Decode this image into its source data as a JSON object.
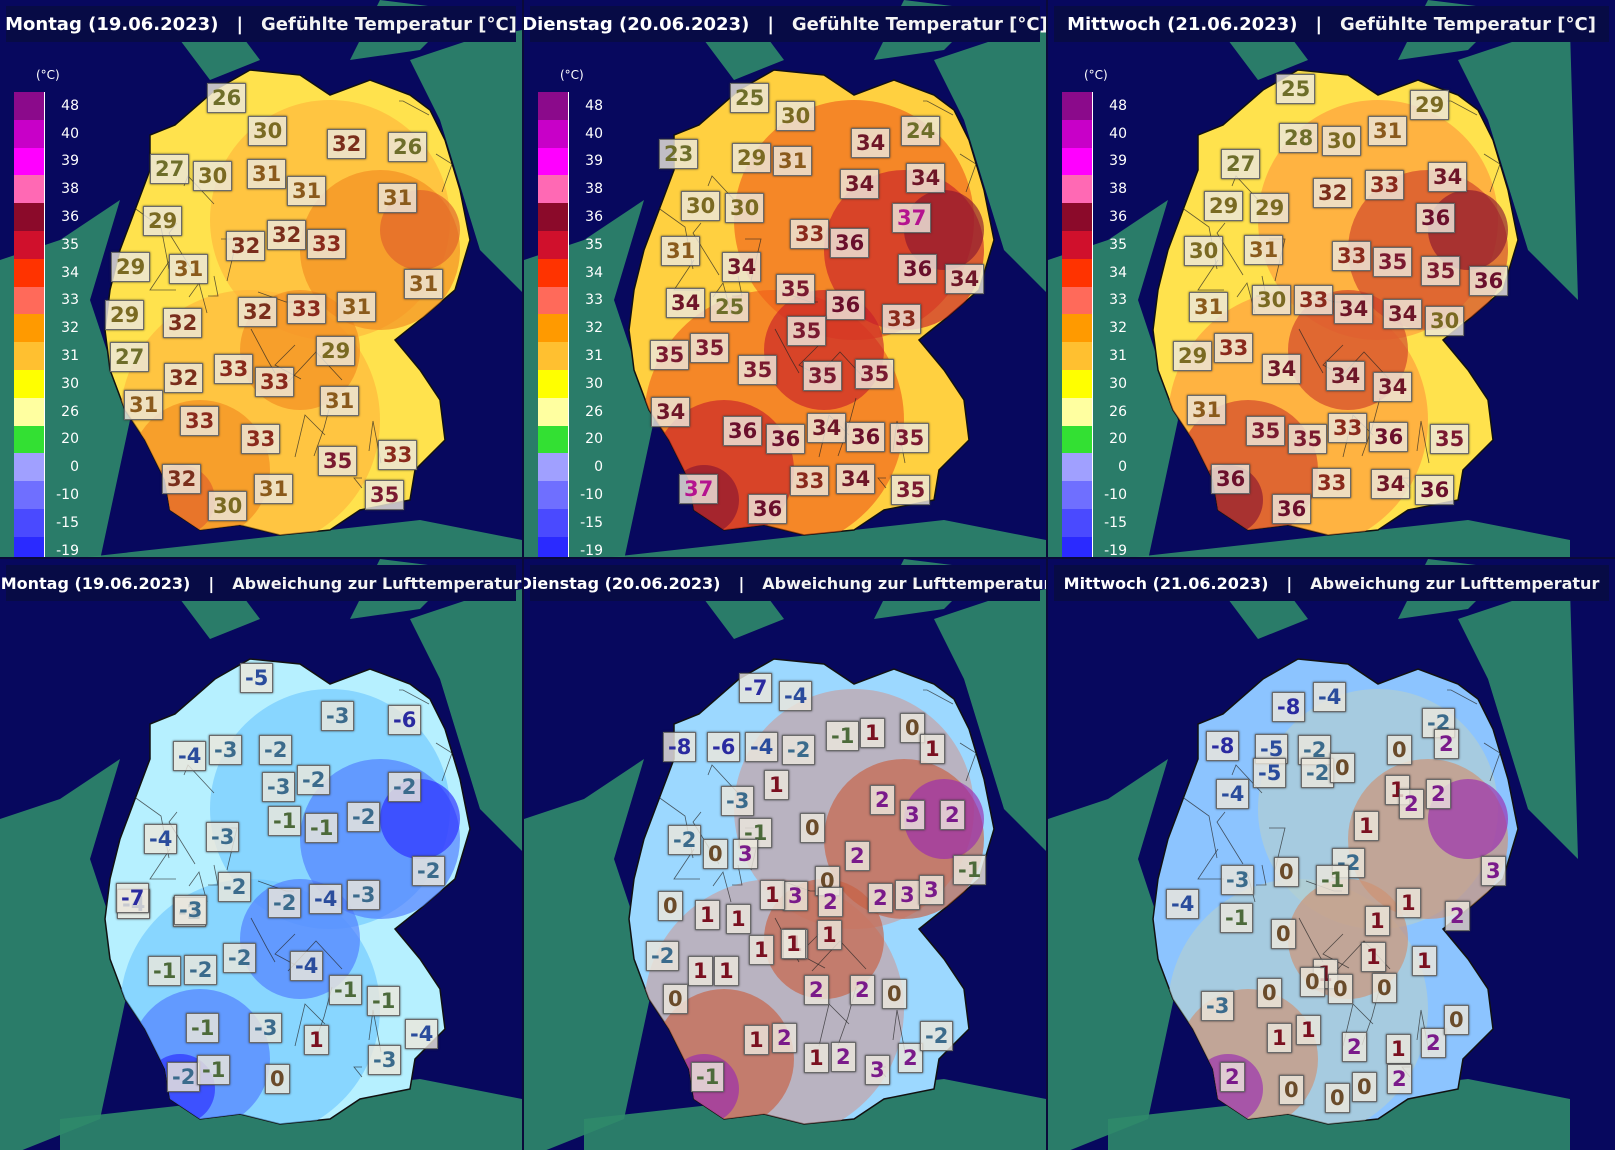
{
  "legend": {
    "unit": "(°C)",
    "items": [
      {
        "label": "48",
        "color": "#8b0a8b"
      },
      {
        "label": "40",
        "color": "#c800c8"
      },
      {
        "label": "39",
        "color": "#ff00ff"
      },
      {
        "label": "38",
        "color": "#ff69b4"
      },
      {
        "label": "36",
        "color": "#8b0a2a"
      },
      {
        "label": "35",
        "color": "#d0102c"
      },
      {
        "label": "34",
        "color": "#ff3300"
      },
      {
        "label": "33",
        "color": "#ff6a5a"
      },
      {
        "label": "32",
        "color": "#ff9a00"
      },
      {
        "label": "31",
        "color": "#ffc030"
      },
      {
        "label": "30",
        "color": "#ffff00"
      },
      {
        "label": "26",
        "color": "#ffffa0"
      },
      {
        "label": "20",
        "color": "#33e033"
      },
      {
        "label": "0",
        "color": "#a0a0ff"
      },
      {
        "label": "-10",
        "color": "#6f6fff"
      },
      {
        "label": "-15",
        "color": "#4a4aff"
      },
      {
        "label": "-19",
        "color": "#2a2aff"
      }
    ]
  },
  "panels": [
    {
      "day": "Montag (19.06.2023)",
      "sep": "|",
      "title": "Gefühlte Temperatur [°C]",
      "labels": [
        "26",
        "30",
        "32",
        "26",
        "27",
        "30",
        "31",
        "31",
        "31",
        "29",
        "32",
        "32",
        "33",
        "29",
        "31",
        "31",
        "29",
        "32",
        "32",
        "33",
        "31",
        "27",
        "29",
        "32",
        "33",
        "33",
        "31",
        "31",
        "33",
        "33",
        "33",
        "35",
        "32",
        "31",
        "35",
        "30"
      ]
    },
    {
      "day": "Dienstag (20.06.2023)",
      "sep": "|",
      "title": "Gefühlte Temperatur [°C]",
      "labels": [
        "25",
        "30",
        "24",
        "23",
        "29",
        "31",
        "34",
        "34",
        "34",
        "30",
        "30",
        "37",
        "31",
        "33",
        "36",
        "36",
        "34",
        "25",
        "35",
        "36",
        "34",
        "34",
        "35",
        "35",
        "33",
        "35",
        "35",
        "35",
        "35",
        "34",
        "36",
        "36",
        "34",
        "36",
        "35",
        "37",
        "33",
        "34",
        "35",
        "36"
      ]
    },
    {
      "day": "Mittwoch (21.06.2023)",
      "sep": "|",
      "title": "Gefühlte Temperatur [°C]",
      "labels": [
        "25",
        "29",
        "28",
        "30",
        "31",
        "27",
        "29",
        "29",
        "32",
        "33",
        "34",
        "36",
        "30",
        "31",
        "33",
        "35",
        "35",
        "36",
        "31",
        "30",
        "33",
        "34",
        "34",
        "30",
        "29",
        "33",
        "34",
        "34",
        "34",
        "31",
        "35",
        "35",
        "33",
        "36",
        "35",
        "36",
        "33",
        "34",
        "36",
        "36"
      ]
    },
    {
      "day": "Montag (19.06.2023)",
      "sep": "|",
      "title": "Abweichung zur Lufttemperatur",
      "labels": [
        "-5",
        "-3",
        "-6",
        "-4",
        "-3",
        "-2",
        "-2",
        "-3",
        "-2",
        "-4",
        "-3",
        "-1",
        "-1",
        "-2",
        "-2",
        "-4",
        "-2",
        "-2",
        "-2",
        "-4",
        "-3",
        "-7",
        "-3",
        "-1",
        "-2",
        "-2",
        "-4",
        "-1",
        "-1",
        "-1",
        "-3",
        "1",
        "-4",
        "-2",
        "-1",
        "0",
        "-3"
      ]
    },
    {
      "day": "Dienstag (20.06.2023)",
      "sep": "|",
      "title": "Abweichung zur Lufttemperatur",
      "labels": [
        "-7",
        "-4",
        "-8",
        "-6",
        "-4",
        "-2",
        "-1",
        "1",
        "0",
        "1",
        "-3",
        "1",
        "2",
        "3",
        "2",
        "-2",
        "-1",
        "0",
        "0",
        "3",
        "0",
        "2",
        "3",
        "2",
        "2",
        "3",
        "3",
        "-1",
        "0",
        "1",
        "1",
        "1",
        "1",
        "1",
        "-2",
        "1",
        "1",
        "1",
        "1",
        "0",
        "2",
        "2",
        "0",
        "1",
        "2",
        "1",
        "2",
        "3",
        "2",
        "-2",
        "-1"
      ]
    },
    {
      "day": "Mittwoch (21.06.2023)",
      "sep": "|",
      "title": "Abweichung zur Lufttemperatur",
      "labels": [
        "-8",
        "-4",
        "-8",
        "-5",
        "-2",
        "0",
        "-2",
        "2",
        "-4",
        "-5",
        "-2",
        "0",
        "1",
        "2",
        "2",
        "-2",
        "1",
        "-3",
        "0",
        "-1",
        "1",
        "1",
        "2",
        "3",
        "-4",
        "-1",
        "0",
        "1",
        "1",
        "-3",
        "0",
        "0",
        "0",
        "0",
        "1",
        "1",
        "1",
        "2",
        "1",
        "2",
        "0",
        "2",
        "0",
        "0",
        "0",
        "2"
      ]
    }
  ]
}
